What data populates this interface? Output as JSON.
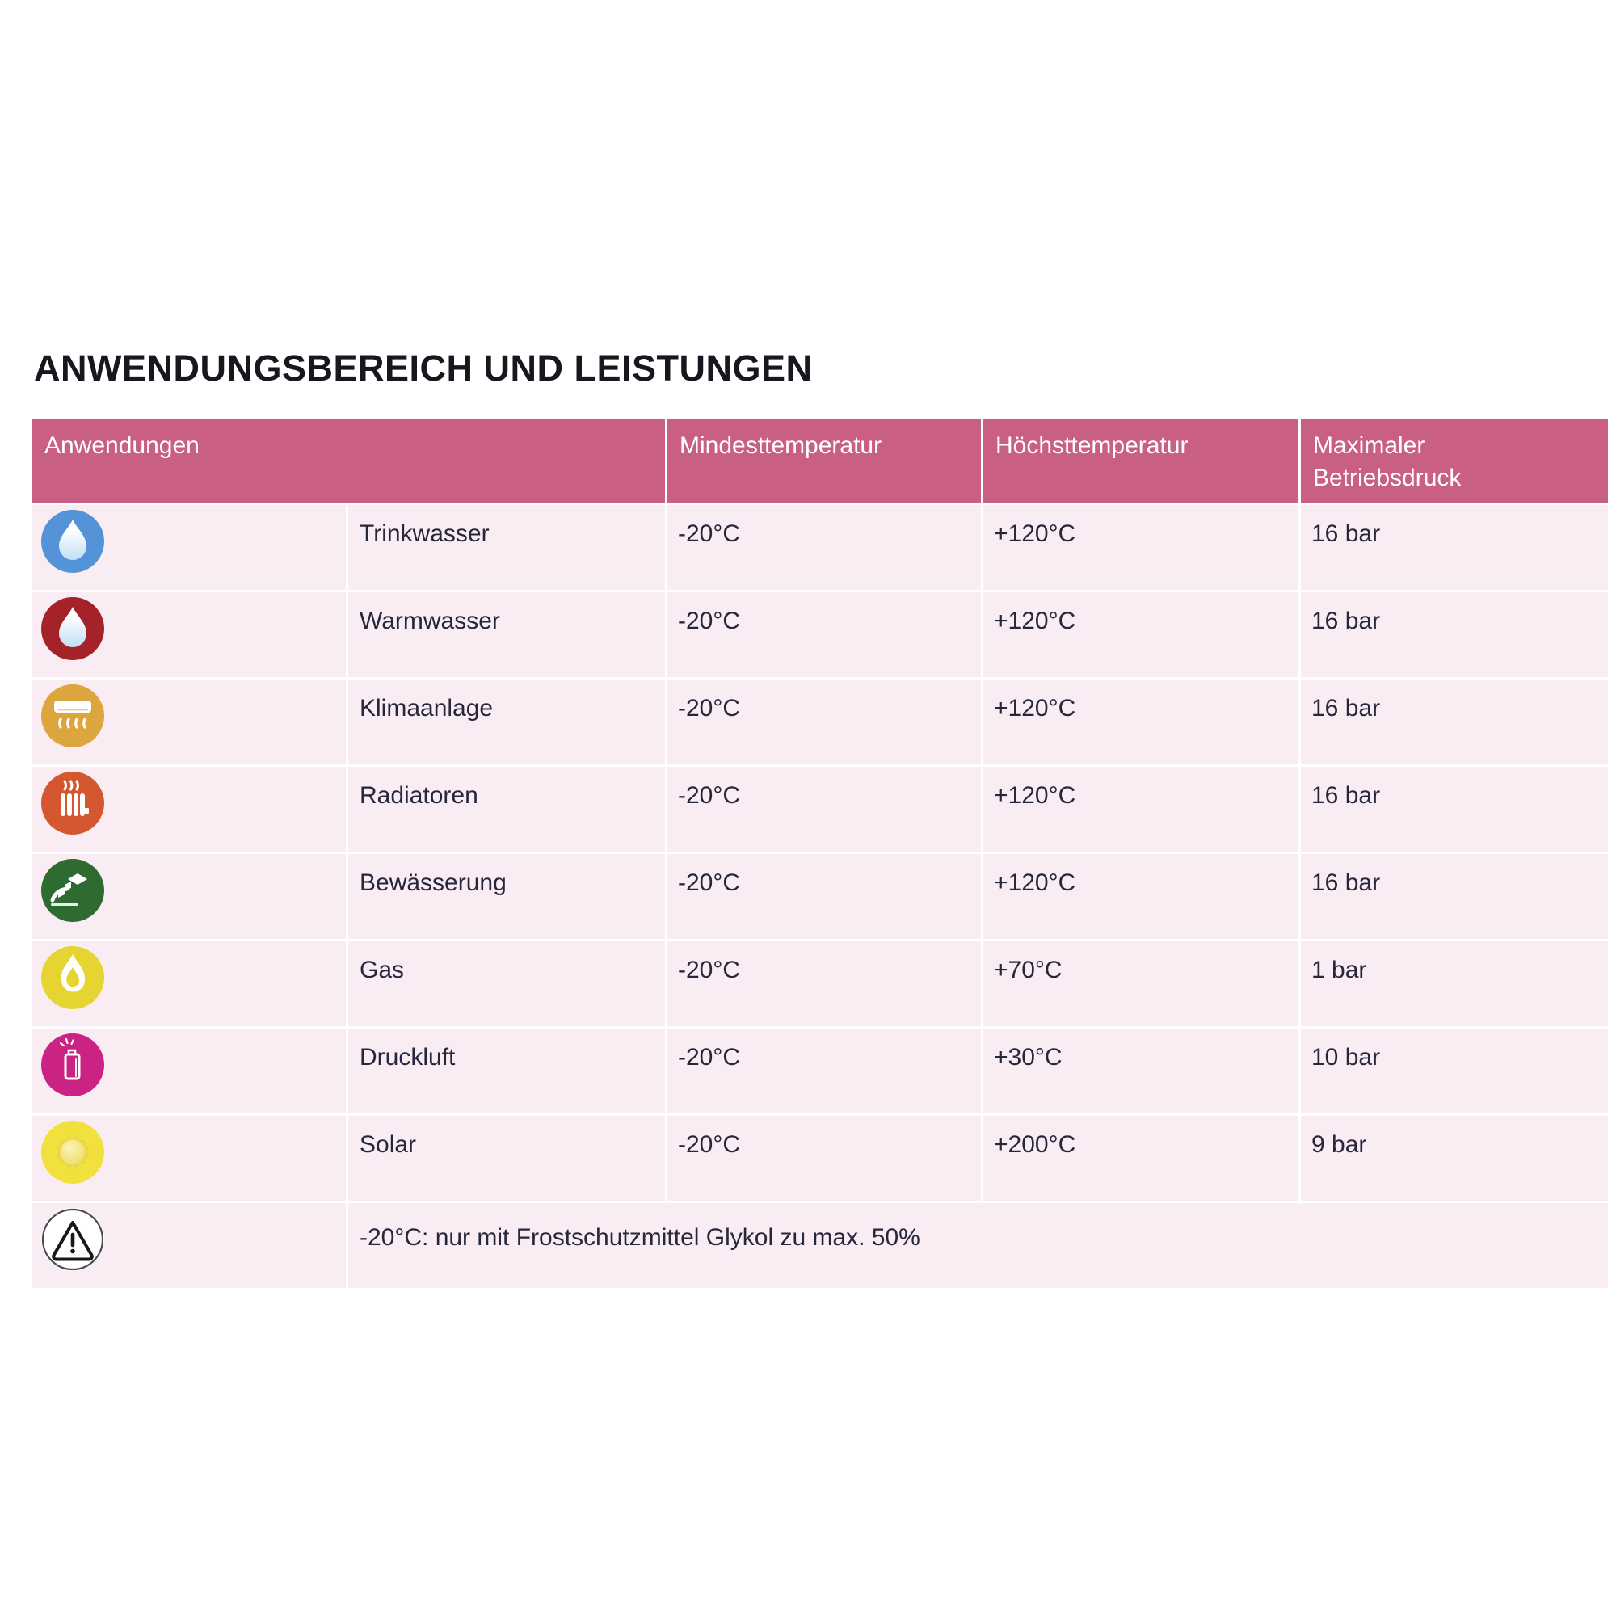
{
  "page": {
    "title": "ANWENDUNGSBEREICH UND LEISTUNGEN"
  },
  "colors": {
    "header_bg": "#c96084",
    "row_bg": "#f9edf3",
    "header_text": "#ffffff",
    "body_text": "#26263c",
    "title_text": "#17171f"
  },
  "table": {
    "columns": [
      "Anwendungen",
      "Mindesttemperatur",
      "Höchsttemperatur",
      "Maximaler\nBetriebsdruck"
    ],
    "rows": [
      {
        "icon": "drinking-water-drop-icon",
        "glyph": "drop",
        "icon_color": "#5593d8",
        "label": "Trinkwasser",
        "min_temp": "-20°C",
        "max_temp": "+120°C",
        "max_pressure": "16 bar"
      },
      {
        "icon": "hot-water-drop-icon",
        "glyph": "drop",
        "icon_color": "#a32329",
        "label": "Warmwasser",
        "min_temp": "-20°C",
        "max_temp": "+120°C",
        "max_pressure": "16 bar"
      },
      {
        "icon": "air-conditioner-icon",
        "glyph": "ac",
        "icon_color": "#dda53e",
        "label": "Klimaanlage",
        "min_temp": "-20°C",
        "max_temp": "+120°C",
        "max_pressure": "16 bar"
      },
      {
        "icon": "radiator-icon",
        "glyph": "radiator",
        "icon_color": "#d4572f",
        "label": "Radiatoren",
        "min_temp": "-20°C",
        "max_temp": "+120°C",
        "max_pressure": "16 bar"
      },
      {
        "icon": "irrigation-icon",
        "glyph": "irrigation",
        "icon_color": "#2e6b31",
        "label": "Bewässerung",
        "min_temp": "-20°C",
        "max_temp": "+120°C",
        "max_pressure": "16 bar"
      },
      {
        "icon": "gas-flame-icon",
        "glyph": "flame",
        "icon_color": "#e6d430",
        "label": "Gas",
        "min_temp": "-20°C",
        "max_temp": "+70°C",
        "max_pressure": "1 bar"
      },
      {
        "icon": "spray-can-icon",
        "glyph": "spray",
        "icon_color": "#cb2384",
        "label": "Druckluft",
        "min_temp": "-20°C",
        "max_temp": "+30°C",
        "max_pressure": "10 bar"
      },
      {
        "icon": "sun-icon",
        "glyph": "sun",
        "icon_color": "#f2e13c",
        "label": "Solar",
        "min_temp": "-20°C",
        "max_temp": "+200°C",
        "max_pressure": "9 bar"
      }
    ],
    "footnote": {
      "icon": "warning-icon",
      "glyph": "warning",
      "icon_color": "#ffffff",
      "text": "-20°C: nur mit Frostschutzmittel Glykol zu max. 50%"
    }
  }
}
